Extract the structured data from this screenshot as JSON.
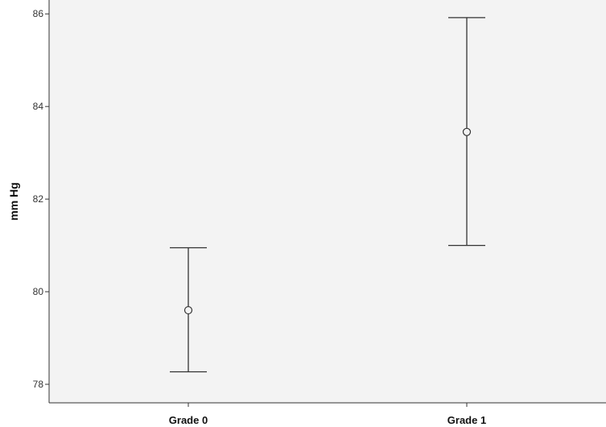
{
  "chart_data": {
    "type": "scatter",
    "subtype": "error-bar",
    "title": "",
    "xlabel": "",
    "ylabel": "mm Hg",
    "categories": [
      "Grade 0",
      "Grade 1"
    ],
    "series": [
      {
        "points": [
          {
            "category": "Grade 0",
            "mean": 79.6,
            "lower": 78.27,
            "upper": 80.95
          },
          {
            "category": "Grade 1",
            "mean": 83.45,
            "lower": 81.0,
            "upper": 85.92
          }
        ]
      }
    ],
    "ylim": [
      77.6,
      86.3
    ],
    "yticks": [
      78,
      80,
      82,
      84,
      86
    ],
    "grid": false,
    "legend": "none",
    "colors": {
      "plot_background": "#f3f3f3",
      "marks": "#333333",
      "axis": "#333333"
    }
  }
}
